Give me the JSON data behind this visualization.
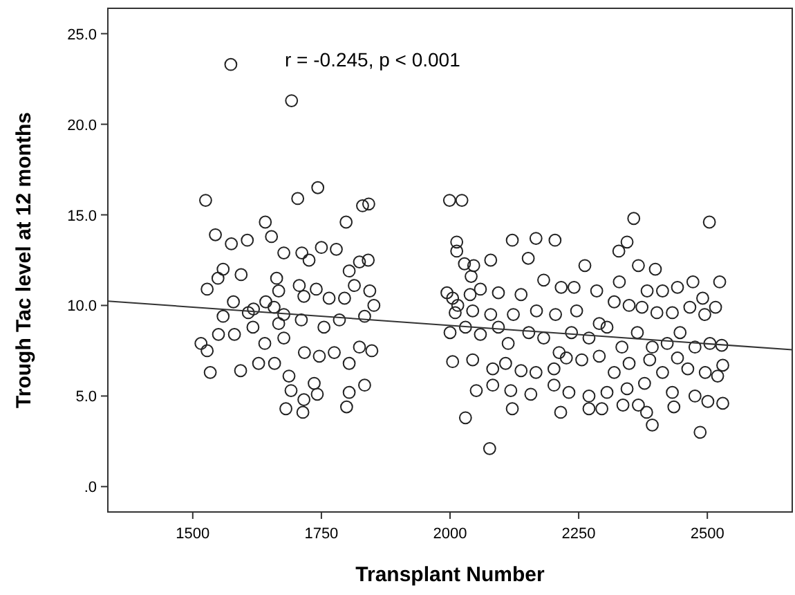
{
  "chart_data": {
    "type": "scatter",
    "xlabel": "Transplant Number",
    "ylabel": "Trough Tac level at 12 months",
    "annotations": [
      "r = -0.245, p < 0.001"
    ],
    "xlim": [
      1335,
      2665
    ],
    "xticks": [
      1500,
      1750,
      2000,
      2250,
      2500
    ],
    "ylim": [
      -1.4,
      26.4
    ],
    "yticks": [
      {
        "value": 0,
        "label": ".0"
      },
      {
        "value": 5,
        "label": "5.0"
      },
      {
        "value": 10,
        "label": "10.0"
      },
      {
        "value": 15,
        "label": "15.0"
      },
      {
        "value": 20,
        "label": "20.0"
      },
      {
        "value": 25,
        "label": "25.0"
      }
    ],
    "grid": false,
    "series": [
      {
        "marker": "circle",
        "color": "#222222",
        "x": [
          1574,
          1692,
          1525,
          1743,
          1704,
          1544,
          1641,
          1798,
          1830,
          1842,
          1575,
          1606,
          1653,
          1677,
          1712,
          1750,
          1779,
          1824,
          1841,
          1726,
          1528,
          1559,
          1594,
          1549,
          1663,
          1707,
          1804,
          1814,
          1579,
          1618,
          1642,
          1667,
          1716,
          1740,
          1765,
          1795,
          1844,
          1852,
          1559,
          1608,
          1658,
          1677,
          1711,
          1755,
          1785,
          1834,
          1516,
          1528,
          1534,
          1550,
          1581,
          1617,
          1640,
          1677,
          1717,
          1746,
          1775,
          1824,
          1848,
          1593,
          1628,
          1659,
          1687,
          1736,
          1804,
          1834,
          1681,
          1714,
          1716,
          1691,
          1742,
          1799,
          1804,
          1667,
          1999,
          2023,
          2013,
          2013,
          2079,
          2121,
          2167,
          2204,
          2152,
          2262,
          2328,
          2344,
          2357,
          2504,
          2366,
          2399,
          2028,
          2046,
          2041,
          2524,
          1994,
          2005,
          2015,
          2039,
          2059,
          2094,
          2138,
          2182,
          2216,
          2241,
          2285,
          2329,
          2383,
          2413,
          2442,
          2472,
          2491,
          2516,
          2010,
          2044,
          2079,
          2123,
          2168,
          2205,
          2246,
          2290,
          2319,
          2348,
          2373,
          2402,
          2432,
          2466,
          2495,
          2000,
          2030,
          2059,
          2094,
          2113,
          2153,
          2182,
          2212,
          2236,
          2270,
          2305,
          2334,
          2364,
          2393,
          2422,
          2447,
          2476,
          2505,
          2528,
          2005,
          2044,
          2083,
          2108,
          2138,
          2167,
          2202,
          2226,
          2256,
          2290,
          2319,
          2348,
          2388,
          2413,
          2442,
          2462,
          2496,
          2520,
          2530,
          2051,
          2083,
          2118,
          2157,
          2202,
          2231,
          2270,
          2305,
          2344,
          2378,
          2432,
          2476,
          2501,
          2530,
          2030,
          2077,
          2121,
          2215,
          2270,
          2295,
          2336,
          2366,
          2382,
          2393,
          2435,
          2486
        ],
        "values": [
          23.3,
          21.3,
          15.8,
          16.5,
          15.9,
          13.9,
          14.6,
          14.6,
          15.5,
          15.6,
          13.4,
          13.6,
          13.8,
          12.9,
          12.9,
          13.2,
          13.1,
          12.4,
          12.5,
          12.5,
          10.9,
          12.0,
          11.7,
          11.5,
          11.5,
          11.1,
          11.9,
          11.1,
          10.2,
          9.8,
          10.2,
          10.8,
          10.5,
          10.9,
          10.4,
          10.4,
          10.8,
          10.0,
          9.4,
          9.6,
          9.9,
          9.5,
          9.2,
          8.8,
          9.2,
          9.4,
          7.9,
          7.5,
          6.3,
          8.4,
          8.4,
          8.8,
          7.9,
          8.2,
          7.4,
          7.2,
          7.4,
          7.7,
          7.5,
          6.4,
          6.8,
          6.8,
          6.1,
          5.7,
          6.8,
          5.6,
          4.3,
          4.1,
          4.8,
          5.3,
          5.1,
          4.4,
          5.2,
          9.0,
          15.8,
          15.8,
          13.5,
          13.0,
          12.5,
          13.6,
          13.7,
          13.6,
          12.6,
          12.2,
          13.0,
          13.5,
          14.8,
          14.6,
          12.2,
          12.0,
          12.3,
          12.2,
          11.6,
          11.3,
          10.7,
          10.4,
          10.0,
          10.6,
          10.9,
          10.7,
          10.6,
          11.4,
          11.0,
          11.0,
          10.8,
          11.3,
          10.8,
          10.8,
          11.0,
          11.3,
          10.4,
          9.9,
          9.6,
          9.7,
          9.5,
          9.5,
          9.7,
          9.5,
          9.7,
          9.0,
          10.2,
          10.0,
          9.9,
          9.6,
          9.6,
          9.9,
          9.5,
          8.5,
          8.8,
          8.4,
          8.8,
          7.9,
          8.5,
          8.2,
          7.4,
          8.5,
          8.2,
          8.8,
          7.7,
          8.5,
          7.7,
          7.9,
          8.5,
          7.7,
          7.9,
          7.8,
          6.9,
          7.0,
          6.5,
          6.8,
          6.4,
          6.3,
          6.5,
          7.1,
          7.0,
          7.2,
          6.3,
          6.8,
          7.0,
          6.3,
          7.1,
          6.5,
          6.3,
          6.1,
          6.7,
          5.3,
          5.6,
          5.3,
          5.1,
          5.6,
          5.2,
          5.0,
          5.2,
          5.4,
          5.7,
          5.2,
          5.0,
          4.7,
          4.6,
          3.8,
          2.1,
          4.3,
          4.1,
          4.3,
          4.3,
          4.5,
          4.5,
          4.1,
          3.4,
          4.4,
          3.0
        ]
      },
      {
        "type": "line",
        "color": "#333333",
        "x": [
          1335,
          2665
        ],
        "values": [
          10.24,
          7.55
        ]
      }
    ]
  }
}
